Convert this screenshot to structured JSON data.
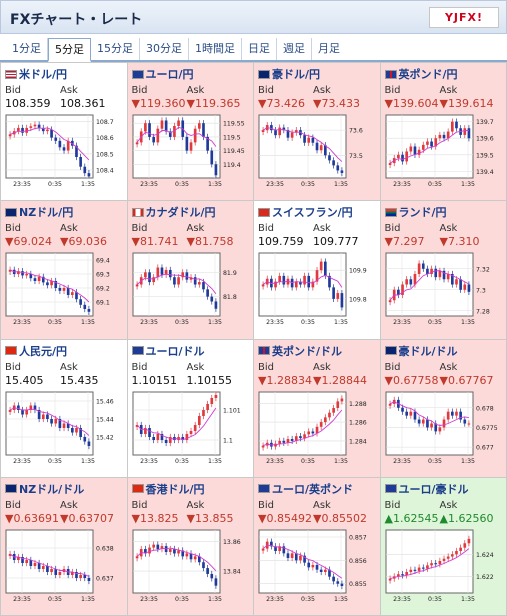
{
  "header": {
    "title": "FXチャート・レート",
    "logo_text": "YJFX!"
  },
  "tabs": [
    {
      "label": "1分足",
      "active": false
    },
    {
      "label": "5分足",
      "active": true
    },
    {
      "label": "15分足",
      "active": false
    },
    {
      "label": "30分足",
      "active": false
    },
    {
      "label": "1時間足",
      "active": false
    },
    {
      "label": "日足",
      "active": false
    },
    {
      "label": "週足",
      "active": false
    },
    {
      "label": "月足",
      "active": false
    }
  ],
  "colors": {
    "up_candle": "#e0393e",
    "down_candle": "#1f3a9a",
    "ma_line": "#d13bd1",
    "down_cell": "#fcdada",
    "up_cell": "#dff5d9"
  },
  "pairs": [
    {
      "name": "米ドル/円",
      "flag": "us",
      "trend": "neutral",
      "bid_label": "Bid",
      "ask_label": "Ask",
      "bid": "108.359",
      "ask": "108.361",
      "ticks": [
        "108.7",
        "108.6",
        "108.5",
        "108.4"
      ],
      "ylim": [
        108.35,
        108.74
      ],
      "times": [
        "23:35",
        "0:35",
        "1:35"
      ],
      "closes": [
        108.62,
        108.64,
        108.66,
        108.63,
        108.66,
        108.67,
        108.68,
        108.66,
        108.64,
        108.65,
        108.6,
        108.58,
        108.54,
        108.52,
        108.58,
        108.55,
        108.48,
        108.42,
        108.38,
        108.36
      ]
    },
    {
      "name": "ユーロ/円",
      "flag": "eu",
      "trend": "down",
      "bid_label": "Bid",
      "ask_label": "Ask",
      "bid": "▼119.360",
      "ask": "▼119.365",
      "ticks": [
        "119.55",
        "119.5",
        "119.45",
        "119.4"
      ],
      "ylim": [
        119.35,
        119.58
      ],
      "times": [
        "23:35",
        "0:35",
        "1:35"
      ],
      "closes": [
        119.48,
        119.52,
        119.55,
        119.5,
        119.48,
        119.53,
        119.56,
        119.52,
        119.5,
        119.54,
        119.56,
        119.5,
        119.45,
        119.48,
        119.53,
        119.55,
        119.5,
        119.45,
        119.4,
        119.36
      ]
    },
    {
      "name": "豪ドル/円",
      "flag": "au",
      "trend": "down",
      "bid_label": "Bid",
      "ask_label": "Ask",
      "bid": "▼73.426",
      "ask": "▼73.433",
      "ticks": [
        "73.6",
        "73.5"
      ],
      "ylim": [
        73.41,
        73.66
      ],
      "times": [
        "23:35",
        "0:35",
        "1:35"
      ],
      "closes": [
        73.6,
        73.62,
        73.6,
        73.58,
        73.61,
        73.6,
        73.57,
        73.59,
        73.6,
        73.58,
        73.55,
        73.57,
        73.55,
        73.52,
        73.54,
        73.5,
        73.48,
        73.46,
        73.44,
        73.43
      ]
    },
    {
      "name": "英ポンド/円",
      "flag": "gb",
      "trend": "down",
      "bid_label": "Bid",
      "ask_label": "Ask",
      "bid": "▼139.604",
      "ask": "▼139.614",
      "ticks": [
        "139.7",
        "139.6",
        "139.5",
        "139.4"
      ],
      "ylim": [
        139.36,
        139.74
      ],
      "times": [
        "23:35",
        "0:35",
        "1:35"
      ],
      "closes": [
        139.45,
        139.48,
        139.5,
        139.46,
        139.52,
        139.55,
        139.5,
        139.53,
        139.56,
        139.58,
        139.55,
        139.6,
        139.62,
        139.6,
        139.64,
        139.7,
        139.66,
        139.62,
        139.66,
        139.6
      ]
    },
    {
      "name": "NZドル/円",
      "flag": "nz",
      "trend": "down",
      "bid_label": "Bid",
      "ask_label": "Ask",
      "bid": "▼69.024",
      "ask": "▼69.036",
      "ticks": [
        "69.4",
        "69.3",
        "69.2",
        "69.1"
      ],
      "ylim": [
        69.0,
        69.45
      ],
      "times": [
        "23:35",
        "0:35",
        "1:35"
      ],
      "closes": [
        69.33,
        69.3,
        69.32,
        69.29,
        69.3,
        69.27,
        69.25,
        69.28,
        69.24,
        69.22,
        69.25,
        69.2,
        69.18,
        69.2,
        69.15,
        69.17,
        69.12,
        69.08,
        69.05,
        69.03
      ]
    },
    {
      "name": "カナダドル/円",
      "flag": "ca",
      "trend": "down",
      "bid_label": "Bid",
      "ask_label": "Ask",
      "bid": "▼81.741",
      "ask": "▼81.758",
      "ticks": [
        "81.9",
        "81.8"
      ],
      "ylim": [
        81.72,
        81.98
      ],
      "times": [
        "23:35",
        "0:35",
        "1:35"
      ],
      "closes": [
        81.85,
        81.88,
        81.9,
        81.86,
        81.88,
        81.92,
        81.89,
        81.91,
        81.88,
        81.85,
        81.88,
        81.9,
        81.87,
        81.88,
        81.85,
        81.86,
        81.83,
        81.8,
        81.78,
        81.75
      ]
    },
    {
      "name": "スイスフラン/円",
      "flag": "ch",
      "trend": "neutral",
      "bid_label": "Bid",
      "ask_label": "Ask",
      "bid": "109.759",
      "ask": "109.777",
      "ticks": [
        "109.9",
        "109.8"
      ],
      "ylim": [
        109.74,
        109.96
      ],
      "times": [
        "23:35",
        "0:35",
        "1:35"
      ],
      "closes": [
        109.85,
        109.87,
        109.84,
        109.86,
        109.88,
        109.85,
        109.87,
        109.84,
        109.86,
        109.85,
        109.88,
        109.84,
        109.86,
        109.9,
        109.93,
        109.88,
        109.84,
        109.8,
        109.82,
        109.77
      ]
    },
    {
      "name": "ランド/円",
      "flag": "za",
      "trend": "down",
      "bid_label": "Bid",
      "ask_label": "Ask",
      "bid": "▼7.297",
      "ask": "▼7.310",
      "ticks": [
        "7.32",
        "7.3",
        "7.28"
      ],
      "ylim": [
        7.275,
        7.335
      ],
      "times": [
        "23:35",
        "0:35",
        "1:35"
      ],
      "closes": [
        7.29,
        7.3,
        7.295,
        7.305,
        7.31,
        7.305,
        7.315,
        7.325,
        7.32,
        7.315,
        7.32,
        7.312,
        7.318,
        7.31,
        7.315,
        7.305,
        7.31,
        7.3,
        7.305,
        7.298
      ]
    },
    {
      "name": "人民元/円",
      "flag": "cn",
      "trend": "neutral",
      "bid_label": "Bid",
      "ask_label": "Ask",
      "bid": "15.405",
      "ask": "15.435",
      "ticks": [
        "15.46",
        "15.44",
        "15.42"
      ],
      "ylim": [
        15.4,
        15.47
      ],
      "times": [
        "23:35",
        "0:35",
        "1:35"
      ],
      "closes": [
        15.45,
        15.455,
        15.45,
        15.445,
        15.45,
        15.455,
        15.45,
        15.44,
        15.445,
        15.44,
        15.435,
        15.44,
        15.43,
        15.435,
        15.43,
        15.425,
        15.43,
        15.42,
        15.415,
        15.41
      ]
    },
    {
      "name": "ユーロ/ドル",
      "flag": "eu",
      "trend": "neutral",
      "bid_label": "Bid",
      "ask_label": "Ask",
      "bid": "1.10151",
      "ask": "1.10155",
      "ticks": [
        "1.101",
        "1.1"
      ],
      "ylim": [
        1.0995,
        1.1016
      ],
      "times": [
        "23:35",
        "0:35",
        "1:35"
      ],
      "closes": [
        1.1005,
        1.1002,
        1.1004,
        1.1001,
        1.1,
        1.1002,
        1.1,
        1.0999,
        1.1001,
        1.1,
        1.1001,
        1.1,
        1.1002,
        1.1003,
        1.1005,
        1.1008,
        1.101,
        1.1012,
        1.1014,
        1.1015
      ]
    },
    {
      "name": "英ポンド/ドル",
      "flag": "gb",
      "trend": "down",
      "bid_label": "Bid",
      "ask_label": "Ask",
      "bid": "▼1.28834",
      "ask": "▼1.28844",
      "ticks": [
        "1.288",
        "1.286",
        "1.284"
      ],
      "ylim": [
        1.2825,
        1.2892
      ],
      "times": [
        "23:35",
        "0:35",
        "1:35"
      ],
      "closes": [
        1.2835,
        1.2838,
        1.2834,
        1.2837,
        1.284,
        1.2838,
        1.2842,
        1.284,
        1.2845,
        1.2843,
        1.2847,
        1.285,
        1.2848,
        1.2855,
        1.286,
        1.2865,
        1.287,
        1.2875,
        1.2882,
        1.2885
      ]
    },
    {
      "name": "豪ドル/ドル",
      "flag": "au",
      "trend": "down",
      "bid_label": "Bid",
      "ask_label": "Ask",
      "bid": "▼0.67758",
      "ask": "▼0.67767",
      "ticks": [
        "0.678",
        "0.6775",
        "0.677"
      ],
      "ylim": [
        0.6768,
        0.6784
      ],
      "times": [
        "23:35",
        "0:35",
        "1:35"
      ],
      "closes": [
        0.6781,
        0.6782,
        0.678,
        0.6779,
        0.6778,
        0.6779,
        0.6777,
        0.6776,
        0.6777,
        0.6775,
        0.6776,
        0.6774,
        0.6775,
        0.6777,
        0.6779,
        0.6778,
        0.6779,
        0.6777,
        0.6776,
        0.6776
      ]
    },
    {
      "name": "NZドル/ドル",
      "flag": "nz",
      "trend": "down",
      "bid_label": "Bid",
      "ask_label": "Ask",
      "bid": "▼0.63691",
      "ask": "▼0.63707",
      "ticks": [
        "0.638",
        "0.637"
      ],
      "ylim": [
        0.6365,
        0.6386
      ],
      "times": [
        "23:35",
        "0:35",
        "1:35"
      ],
      "closes": [
        0.6378,
        0.6376,
        0.6377,
        0.6375,
        0.6376,
        0.6374,
        0.6375,
        0.6373,
        0.6374,
        0.6372,
        0.6373,
        0.6371,
        0.6372,
        0.6373,
        0.6371,
        0.6372,
        0.637,
        0.6371,
        0.637,
        0.6369
      ]
    },
    {
      "name": "香港ドル/円",
      "flag": "hk",
      "trend": "down",
      "bid_label": "Bid",
      "ask_label": "Ask",
      "bid": "▼13.825",
      "ask": "▼13.855",
      "ticks": [
        "13.86",
        "13.84"
      ],
      "ylim": [
        13.825,
        13.868
      ],
      "times": [
        "23:35",
        "0:35",
        "1:35"
      ],
      "closes": [
        13.85,
        13.855,
        13.852,
        13.856,
        13.858,
        13.855,
        13.857,
        13.853,
        13.855,
        13.852,
        13.854,
        13.85,
        13.852,
        13.848,
        13.85,
        13.846,
        13.842,
        13.838,
        13.835,
        13.83
      ]
    },
    {
      "name": "ユーロ/英ポンド",
      "flag": "eu",
      "trend": "down",
      "bid_label": "Bid",
      "ask_label": "Ask",
      "bid": "▼0.85492",
      "ask": "▼0.85502",
      "ticks": [
        "0.857",
        "0.856",
        "0.855"
      ],
      "ylim": [
        0.8546,
        0.8573
      ],
      "times": [
        "23:35",
        "0:35",
        "1:35"
      ],
      "closes": [
        0.8565,
        0.8568,
        0.8566,
        0.8564,
        0.8566,
        0.8563,
        0.8561,
        0.8563,
        0.856,
        0.8562,
        0.8559,
        0.8557,
        0.8558,
        0.8556,
        0.8555,
        0.8556,
        0.8553,
        0.8551,
        0.855,
        0.8549
      ]
    },
    {
      "name": "ユーロ/豪ドル",
      "flag": "eu",
      "trend": "up",
      "bid_label": "Bid",
      "ask_label": "Ask",
      "bid": "▲1.62545",
      "ask": "▲1.62560",
      "ticks": [
        "1.624",
        "1.622"
      ],
      "ylim": [
        1.6205,
        1.6262
      ],
      "times": [
        "23:35",
        "0:35",
        "1:35"
      ],
      "closes": [
        1.6218,
        1.622,
        1.6222,
        1.6221,
        1.6224,
        1.6226,
        1.6225,
        1.6228,
        1.6227,
        1.623,
        1.6232,
        1.6231,
        1.6234,
        1.6236,
        1.6238,
        1.624,
        1.6243,
        1.6246,
        1.625,
        1.6254
      ]
    }
  ]
}
